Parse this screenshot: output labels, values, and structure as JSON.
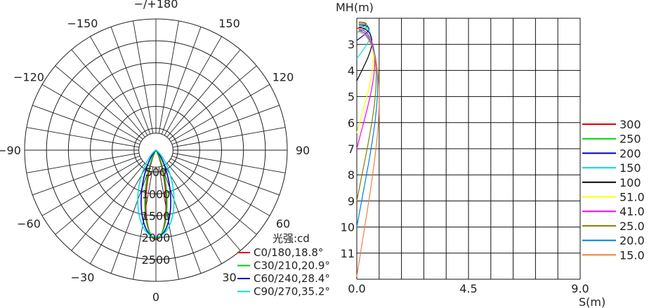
{
  "chart_data": [
    {
      "type": "polar",
      "angle_labels": [
        {
          "angle": 0,
          "text": "0"
        },
        {
          "angle": 30,
          "text": "30"
        },
        {
          "angle": 60,
          "text": "60"
        },
        {
          "angle": 90,
          "text": "90"
        },
        {
          "angle": 120,
          "text": "120"
        },
        {
          "angle": 150,
          "text": "150"
        },
        {
          "angle": 180,
          "text": "−/+180"
        },
        {
          "angle": -150,
          "text": "−150"
        },
        {
          "angle": -120,
          "text": "−120"
        },
        {
          "angle": -90,
          "text": "−90"
        },
        {
          "angle": -60,
          "text": "−60"
        },
        {
          "angle": -30,
          "text": "−30"
        }
      ],
      "radial_ticks": [
        500,
        1000,
        1500,
        2000,
        2500
      ],
      "radial_tick_labels": [
        "500",
        "1000",
        "1500",
        "2000",
        "2500"
      ],
      "rmax": 3000,
      "unit_label": "光强:cd",
      "series": [
        {
          "name": "C0/180,18.8°",
          "color": "#e00000",
          "peak": 2050,
          "beam_deg": 18.8
        },
        {
          "name": "C30/210,20.9°",
          "color": "#00d000",
          "peak": 2020,
          "beam_deg": 20.9
        },
        {
          "name": "C60/240,28.4°",
          "color": "#0000c0",
          "peak": 2000,
          "beam_deg": 28.4
        },
        {
          "name": "C90/270,35.2°",
          "color": "#00e0e0",
          "peak": 1990,
          "beam_deg": 35.2
        }
      ]
    },
    {
      "type": "isoline",
      "xlabel": "S(m)",
      "ylabel": "MH(m)",
      "xlim": [
        0,
        9
      ],
      "ylim": [
        2,
        12
      ],
      "x_tick_labels": [
        {
          "value": 0,
          "text": "0.0"
        },
        {
          "value": 4.5,
          "text": "4.5"
        },
        {
          "value": 9,
          "text": "9.0"
        }
      ],
      "y_tick_labels": [
        "3",
        "4",
        "5",
        "6",
        "7",
        "8",
        "9",
        "10",
        "11"
      ],
      "series": [
        {
          "name": "300",
          "color": "#e00000",
          "mh_start": 2.15,
          "mh_end": 2.4
        },
        {
          "name": "250",
          "color": "#00d000",
          "mh_start": 2.2,
          "mh_end": 2.55
        },
        {
          "name": "200",
          "color": "#0000c0",
          "mh_start": 2.25,
          "mh_end": 2.85
        },
        {
          "name": "150",
          "color": "#00e0e0",
          "mh_start": 2.3,
          "mh_end": 3.55
        },
        {
          "name": "100",
          "color": "#000000",
          "mh_start": 2.35,
          "mh_end": 4.4
        },
        {
          "name": "51.0",
          "color": "#ffff00",
          "mh_start": 2.4,
          "mh_end": 6.4
        },
        {
          "name": "41.0",
          "color": "#ff00ff",
          "mh_start": 2.4,
          "mh_end": 7.0
        },
        {
          "name": "25.0",
          "color": "#808000",
          "mh_start": 2.45,
          "mh_end": 9.0
        },
        {
          "name": "20.0",
          "color": "#0080e0",
          "mh_start": 2.45,
          "mh_end": 10.0
        },
        {
          "name": "15.0",
          "color": "#f08040",
          "mh_start": 2.5,
          "mh_end": 11.9
        }
      ]
    }
  ]
}
